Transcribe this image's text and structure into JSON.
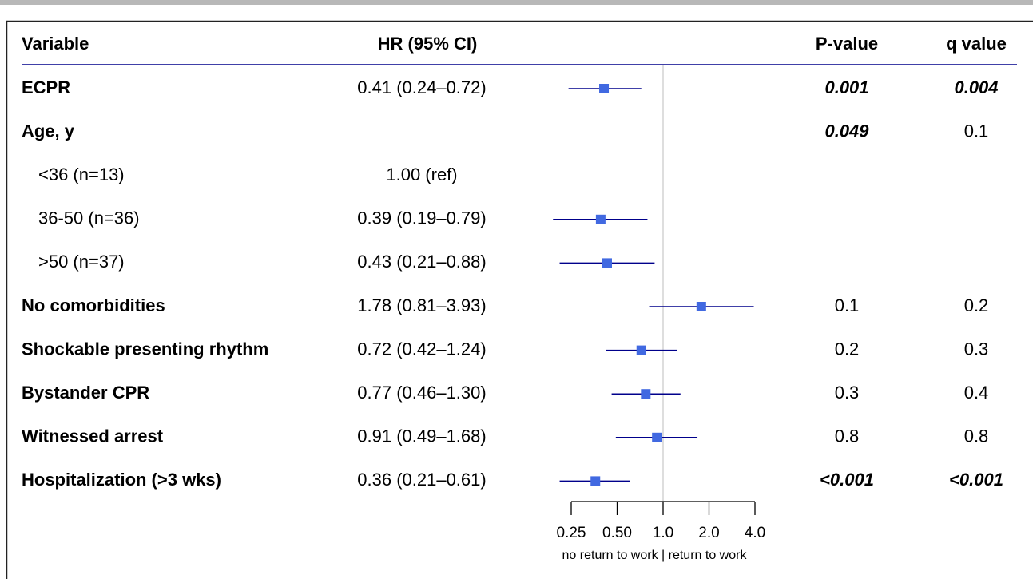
{
  "chart_data": {
    "type": "forest",
    "headers": [
      "Variable",
      "HR (95% CI)",
      "P-value",
      "q value"
    ],
    "categories": [
      "ECPR",
      "Age, y",
      "<36 (n=13)",
      "36-50 (n=36)",
      ">50 (n=37)",
      "No comorbidities",
      "Shockable presenting rhythm",
      "Bystander CPR",
      "Witnessed arrest",
      "Hospitalization (>3 wks)"
    ],
    "row_style": [
      "main",
      "main",
      "sub",
      "sub",
      "sub",
      "main",
      "main",
      "main",
      "main",
      "main"
    ],
    "hr_labels": [
      "0.41 (0.24–0.72)",
      null,
      "1.00 (ref)",
      "0.39 (0.19–0.79)",
      "0.43 (0.21–0.88)",
      "1.78 (0.81–3.93)",
      "0.72 (0.42–1.24)",
      "0.77 (0.46–1.30)",
      "0.91 (0.49–1.68)",
      "0.36 (0.21–0.61)"
    ],
    "values": [
      0.41,
      null,
      null,
      0.39,
      0.43,
      1.78,
      0.72,
      0.77,
      0.91,
      0.36
    ],
    "lower": [
      0.24,
      null,
      null,
      0.19,
      0.21,
      0.81,
      0.42,
      0.46,
      0.49,
      0.21
    ],
    "upper": [
      0.72,
      null,
      null,
      0.79,
      0.88,
      3.93,
      1.24,
      1.3,
      1.68,
      0.61
    ],
    "p_values": [
      "0.001",
      "0.049",
      null,
      null,
      null,
      "0.1",
      "0.2",
      "0.3",
      "0.8",
      "<0.001"
    ],
    "q_values": [
      "0.004",
      "0.1",
      null,
      null,
      null,
      "0.2",
      "0.3",
      "0.4",
      "0.8",
      "<0.001"
    ],
    "p_significant": [
      true,
      true,
      false,
      false,
      false,
      false,
      false,
      false,
      false,
      true
    ],
    "q_significant": [
      true,
      false,
      false,
      false,
      false,
      false,
      false,
      false,
      false,
      true
    ],
    "log_x": true,
    "reference_line": 1,
    "xlim": [
      0.25,
      4
    ],
    "xticks": [
      0.25,
      {
        "value": 0.5,
        "label": "0.50"
      },
      {
        "value": 1,
        "label": "1.0"
      },
      {
        "value": 2,
        "label": "2.0"
      },
      {
        "value": 4,
        "label": "4.0"
      }
    ],
    "xlabel": "no return to work | return to work",
    "marker_color": "#4169e1",
    "line_color": "#00008b"
  }
}
